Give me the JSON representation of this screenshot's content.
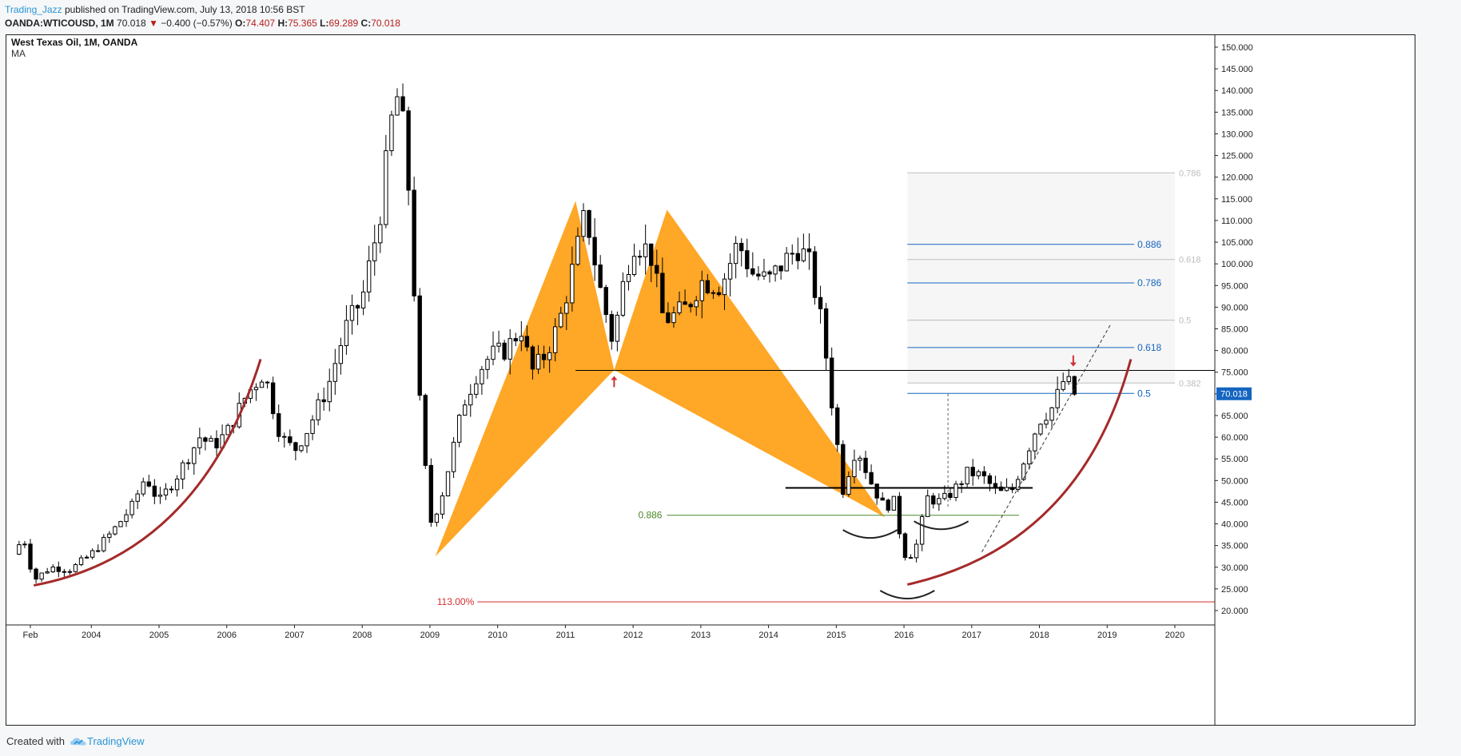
{
  "header": {
    "author": "Trading_Jazz",
    "published_text": "published on TradingView.com, July 13, 2018 10:56 BST"
  },
  "ohlc": {
    "symbol": "OANDA:WTICOUSD, 1M",
    "price": "70.018",
    "change": "−0.400 (−0.57%)",
    "open_label": "O:",
    "open": "74.407",
    "high_label": "H:",
    "high": "75.365",
    "low_label": "L:",
    "low": "69.289",
    "close_label": "C:",
    "close": "70.018"
  },
  "legend": {
    "title": "West Texas Oil, 1M, OANDA",
    "indicator": "MA"
  },
  "footer": {
    "created_with": "Created with",
    "brand": "TradingView"
  },
  "colors": {
    "candle_border": "#000000",
    "candle_up": "#ffffff",
    "candle_down": "#000000",
    "pattern_fill": "#ff9800",
    "curve": "#a52a2a",
    "fib_blue": "#1565c0",
    "fib_grey": "#bdbdbd",
    "fib_green": "#4a8a2a",
    "red_line": "#d32f2f",
    "price_badge": "#1565c0"
  },
  "chart_data": {
    "type": "candlestick",
    "title": "West Texas Oil, 1M, OANDA",
    "xlabel": "",
    "ylabel": "",
    "x_ticks": [
      "Feb",
      "2004",
      "2005",
      "2006",
      "2007",
      "2008",
      "2009",
      "2010",
      "2011",
      "2012",
      "2013",
      "2014",
      "2015",
      "2016",
      "2017",
      "2018",
      "2019",
      "2020"
    ],
    "y_ticks": [
      "20.000",
      "25.000",
      "30.000",
      "35.000",
      "40.000",
      "45.000",
      "50.000",
      "55.000",
      "60.000",
      "65.000",
      "70.000",
      "75.000",
      "80.000",
      "85.000",
      "90.000",
      "95.000",
      "100.000",
      "105.000",
      "110.000",
      "115.000",
      "120.000",
      "125.000",
      "130.000",
      "135.000",
      "140.000",
      "145.000",
      "150.000"
    ],
    "ylim": [
      18.3,
      151.5
    ],
    "xlim": [
      2002.68,
      2020.5
    ],
    "current_price": "70.018",
    "series": [
      {
        "name": "WTICOUSD",
        "anchors": [
          [
            2002.85,
            33
          ],
          [
            2003.0,
            37
          ],
          [
            2003.15,
            27
          ],
          [
            2003.4,
            30
          ],
          [
            2003.7,
            29.5
          ],
          [
            2004.0,
            33
          ],
          [
            2004.3,
            38
          ],
          [
            2004.6,
            44
          ],
          [
            2004.8,
            51
          ],
          [
            2005.0,
            45
          ],
          [
            2005.3,
            52
          ],
          [
            2005.6,
            60
          ],
          [
            2005.8,
            58
          ],
          [
            2006.0,
            61
          ],
          [
            2006.3,
            70
          ],
          [
            2006.55,
            75
          ],
          [
            2006.8,
            60
          ],
          [
            2007.0,
            57
          ],
          [
            2007.2,
            62
          ],
          [
            2007.5,
            72
          ],
          [
            2007.75,
            85
          ],
          [
            2008.0,
            92
          ],
          [
            2008.25,
            110
          ],
          [
            2008.45,
            135
          ],
          [
            2008.55,
            140
          ],
          [
            2008.7,
            115
          ],
          [
            2008.85,
            68
          ],
          [
            2009.0,
            40
          ],
          [
            2009.15,
            45
          ],
          [
            2009.35,
            58
          ],
          [
            2009.5,
            68
          ],
          [
            2009.7,
            75
          ],
          [
            2009.9,
            79
          ],
          [
            2010.1,
            80
          ],
          [
            2010.35,
            85
          ],
          [
            2010.5,
            75
          ],
          [
            2010.7,
            79
          ],
          [
            2010.9,
            86
          ],
          [
            2011.05,
            95
          ],
          [
            2011.3,
            112
          ],
          [
            2011.5,
            95
          ],
          [
            2011.7,
            82
          ],
          [
            2011.85,
            95
          ],
          [
            2012.0,
            105
          ],
          [
            2012.25,
            103
          ],
          [
            2012.45,
            87
          ],
          [
            2012.6,
            88
          ],
          [
            2012.8,
            90
          ],
          [
            2013.0,
            96
          ],
          [
            2013.3,
            95
          ],
          [
            2013.55,
            105
          ],
          [
            2013.75,
            98
          ],
          [
            2014.0,
            96
          ],
          [
            2014.2,
            100
          ],
          [
            2014.45,
            104
          ],
          [
            2014.6,
            100
          ],
          [
            2014.8,
            85
          ],
          [
            2014.95,
            66
          ],
          [
            2015.1,
            48
          ],
          [
            2015.3,
            58
          ],
          [
            2015.5,
            50
          ],
          [
            2015.7,
            44
          ],
          [
            2015.85,
            45
          ],
          [
            2016.0,
            33
          ],
          [
            2016.15,
            33
          ],
          [
            2016.35,
            46
          ],
          [
            2016.55,
            45
          ],
          [
            2016.75,
            48
          ],
          [
            2016.95,
            52
          ],
          [
            2017.15,
            51
          ],
          [
            2017.4,
            47
          ],
          [
            2017.6,
            48
          ],
          [
            2017.8,
            56
          ],
          [
            2018.0,
            64
          ],
          [
            2018.2,
            67
          ],
          [
            2018.38,
            74
          ],
          [
            2018.5,
            70
          ]
        ]
      }
    ],
    "fib_right_levels": [
      {
        "label": "0.786",
        "value": 121
      },
      {
        "label": "0.618",
        "value": 101
      },
      {
        "label": "0.5",
        "value": 87
      },
      {
        "label": "0.382",
        "value": 72.5
      }
    ],
    "fib_left_levels": [
      {
        "label": "0.886",
        "value": 104.5
      },
      {
        "label": "0.786",
        "value": 95.6
      },
      {
        "label": "0.618",
        "value": 80.7
      },
      {
        "label": "0.5",
        "value": 70.1
      }
    ],
    "green_level": {
      "label": "0.886",
      "value": 42
    },
    "red_level": {
      "label": "113.00%",
      "value": 22
    },
    "black_level": {
      "value": 75.4
    },
    "support_level": {
      "value": 48.3
    },
    "pattern_points": [
      [
        2009.08,
        32.5
      ],
      [
        2011.15,
        114.5
      ],
      [
        2011.72,
        75.5
      ],
      [
        2012.5,
        112.5
      ],
      [
        2015.72,
        41.5
      ]
    ]
  }
}
